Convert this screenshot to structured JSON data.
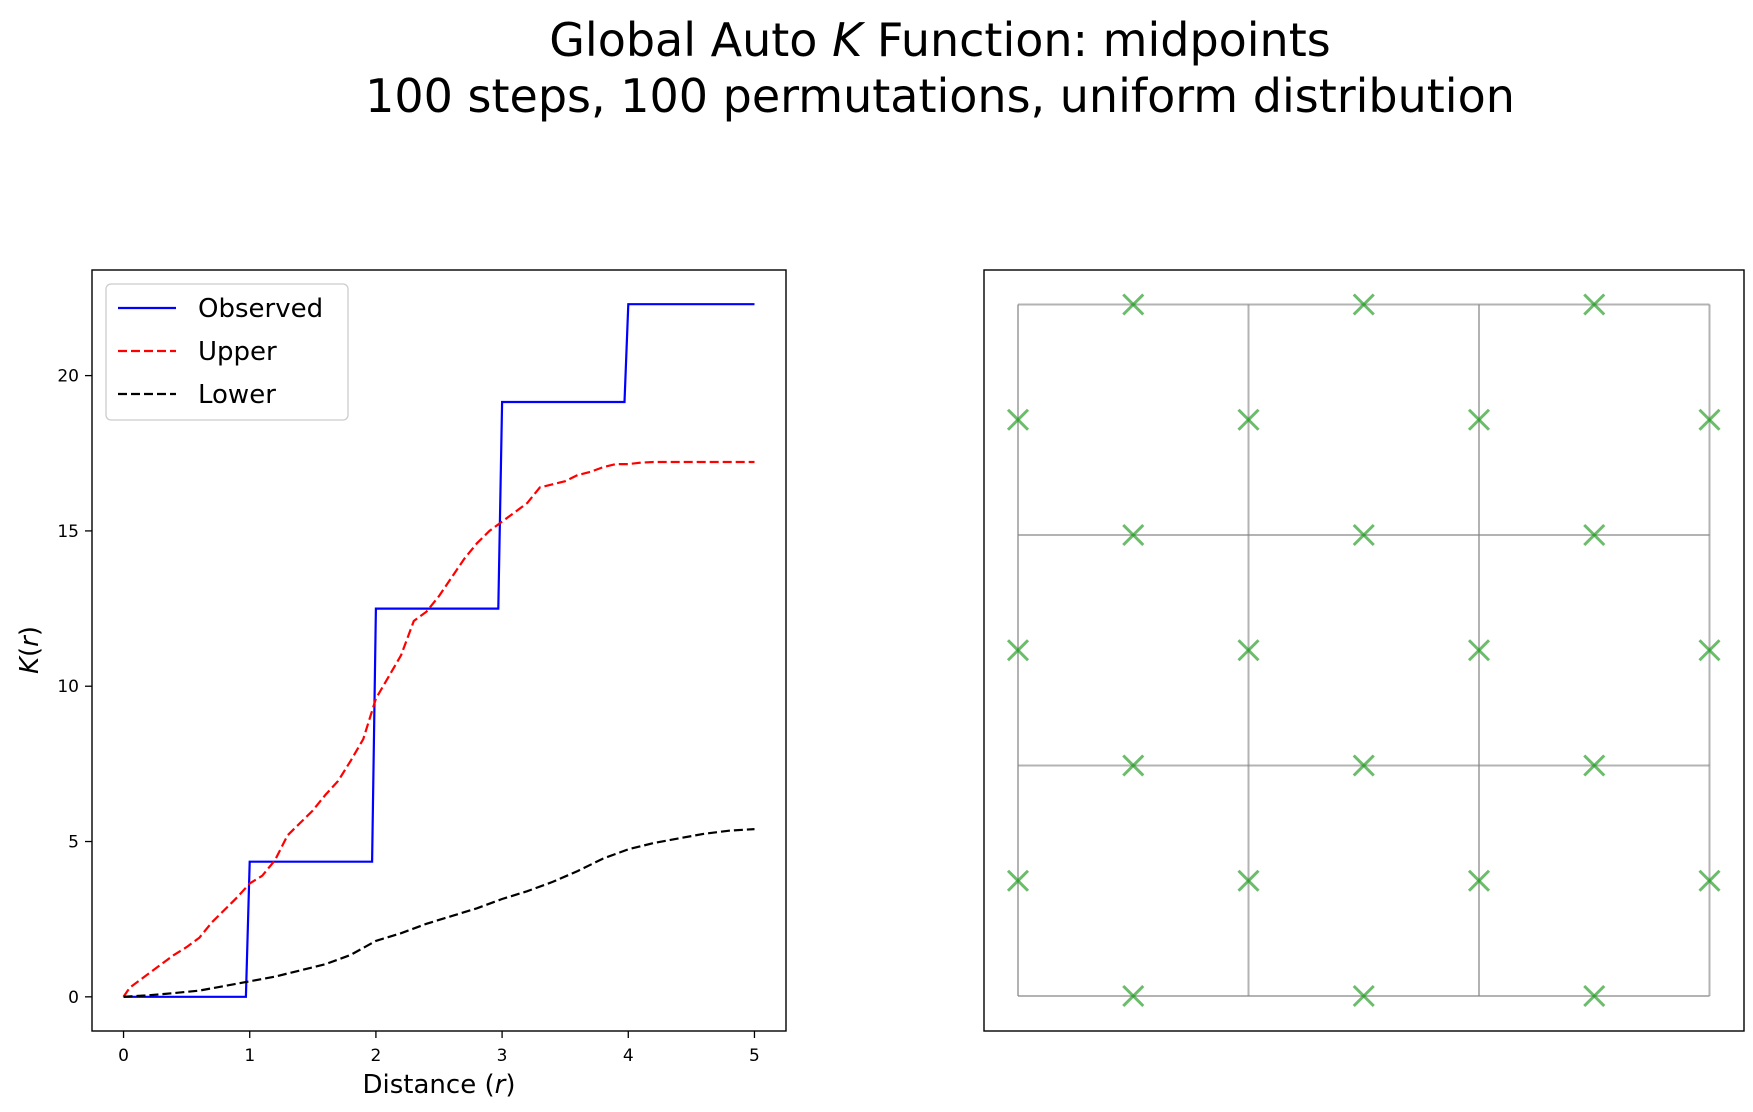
{
  "figure": {
    "title_prefix": "Global Auto ",
    "title_var": "K",
    "title_suffix": " Function: midpoints",
    "subtitle": "100 steps, 100 permutations, uniform distribution"
  },
  "chart_data": [
    {
      "type": "line",
      "xlabel_prefix": "Distance (",
      "xlabel_var": "r",
      "xlabel_suffix": ")",
      "ylabel_var": "K",
      "ylabel_mid": "(",
      "ylabel_var2": "r",
      "ylabel_end": ")",
      "xlim": [
        -0.25,
        5.25
      ],
      "ylim": [
        -1.1,
        23.4
      ],
      "xticks": [
        0,
        1,
        2,
        3,
        4,
        5
      ],
      "yticks": [
        0,
        5,
        10,
        15,
        20
      ],
      "legend_position": "upper-left",
      "series": [
        {
          "name": "Observed",
          "color": "#0000ff",
          "style": "solid",
          "points": [
            [
              0,
              0
            ],
            [
              0.97,
              0
            ],
            [
              1.0,
              4.35
            ],
            [
              1.97,
              4.35
            ],
            [
              2.0,
              12.5
            ],
            [
              2.97,
              12.5
            ],
            [
              3.0,
              19.15
            ],
            [
              3.97,
              19.15
            ],
            [
              4.0,
              22.3
            ],
            [
              5.0,
              22.3
            ]
          ]
        },
        {
          "name": "Upper",
          "color": "#ff0000",
          "style": "dashed",
          "points": [
            [
              0,
              0
            ],
            [
              0.05,
              0.3
            ],
            [
              0.1,
              0.45
            ],
            [
              0.2,
              0.75
            ],
            [
              0.3,
              1.05
            ],
            [
              0.4,
              1.35
            ],
            [
              0.5,
              1.6
            ],
            [
              0.6,
              1.9
            ],
            [
              0.7,
              2.4
            ],
            [
              0.8,
              2.8
            ],
            [
              0.9,
              3.2
            ],
            [
              1.0,
              3.65
            ],
            [
              1.1,
              3.9
            ],
            [
              1.2,
              4.4
            ],
            [
              1.3,
              5.2
            ],
            [
              1.4,
              5.6
            ],
            [
              1.5,
              6.0
            ],
            [
              1.6,
              6.5
            ],
            [
              1.7,
              6.95
            ],
            [
              1.8,
              7.6
            ],
            [
              1.9,
              8.3
            ],
            [
              2.0,
              9.6
            ],
            [
              2.1,
              10.3
            ],
            [
              2.2,
              11.0
            ],
            [
              2.3,
              12.1
            ],
            [
              2.4,
              12.4
            ],
            [
              2.5,
              12.9
            ],
            [
              2.6,
              13.5
            ],
            [
              2.7,
              14.1
            ],
            [
              2.8,
              14.6
            ],
            [
              2.9,
              15.0
            ],
            [
              3.0,
              15.3
            ],
            [
              3.1,
              15.6
            ],
            [
              3.2,
              15.9
            ],
            [
              3.3,
              16.4
            ],
            [
              3.4,
              16.5
            ],
            [
              3.5,
              16.6
            ],
            [
              3.6,
              16.8
            ],
            [
              3.7,
              16.9
            ],
            [
              3.8,
              17.05
            ],
            [
              3.9,
              17.15
            ],
            [
              4.0,
              17.15
            ],
            [
              4.1,
              17.2
            ],
            [
              4.2,
              17.22
            ],
            [
              4.5,
              17.22
            ],
            [
              5.0,
              17.22
            ]
          ]
        },
        {
          "name": "Lower",
          "color": "#000000",
          "style": "dashed",
          "points": [
            [
              0,
              0
            ],
            [
              0.2,
              0.05
            ],
            [
              0.4,
              0.12
            ],
            [
              0.6,
              0.2
            ],
            [
              0.8,
              0.35
            ],
            [
              1.0,
              0.5
            ],
            [
              1.2,
              0.65
            ],
            [
              1.4,
              0.85
            ],
            [
              1.6,
              1.05
            ],
            [
              1.8,
              1.35
            ],
            [
              2.0,
              1.8
            ],
            [
              2.2,
              2.05
            ],
            [
              2.4,
              2.35
            ],
            [
              2.6,
              2.6
            ],
            [
              2.8,
              2.85
            ],
            [
              3.0,
              3.15
            ],
            [
              3.2,
              3.4
            ],
            [
              3.4,
              3.7
            ],
            [
              3.6,
              4.05
            ],
            [
              3.8,
              4.45
            ],
            [
              4.0,
              4.75
            ],
            [
              4.2,
              4.95
            ],
            [
              4.4,
              5.1
            ],
            [
              4.6,
              5.25
            ],
            [
              4.8,
              5.35
            ],
            [
              5.0,
              5.4
            ]
          ]
        }
      ]
    },
    {
      "type": "scatter",
      "xlim": [
        0,
        3.3
      ],
      "ylim": [
        0,
        3.3
      ],
      "show_ticks": false,
      "network_lines": [
        [
          [
            0,
            3
          ],
          [
            3,
            3
          ]
        ],
        [
          [
            0,
            2
          ],
          [
            3,
            2
          ]
        ],
        [
          [
            0,
            1
          ],
          [
            3,
            1
          ]
        ],
        [
          [
            0,
            0
          ],
          [
            3,
            0
          ]
        ],
        [
          [
            0,
            0
          ],
          [
            0,
            3
          ]
        ],
        [
          [
            1,
            0
          ],
          [
            1,
            3
          ]
        ],
        [
          [
            2,
            0
          ],
          [
            2,
            3
          ]
        ],
        [
          [
            3,
            0
          ],
          [
            3,
            3
          ]
        ]
      ],
      "line_color": "#808080",
      "marker": "x",
      "marker_color": "#2ca02c",
      "points": [
        [
          0.5,
          3
        ],
        [
          1.5,
          3
        ],
        [
          2.5,
          3
        ],
        [
          0,
          2.5
        ],
        [
          1,
          2.5
        ],
        [
          2,
          2.5
        ],
        [
          3,
          2.5
        ],
        [
          0.5,
          2
        ],
        [
          1.5,
          2
        ],
        [
          2.5,
          2
        ],
        [
          0,
          1.5
        ],
        [
          1,
          1.5
        ],
        [
          2,
          1.5
        ],
        [
          3,
          1.5
        ],
        [
          0.5,
          1
        ],
        [
          1.5,
          1
        ],
        [
          2.5,
          1
        ],
        [
          0,
          0.5
        ],
        [
          1,
          0.5
        ],
        [
          2,
          0.5
        ],
        [
          3,
          0.5
        ],
        [
          0.5,
          0
        ],
        [
          1.5,
          0
        ],
        [
          2.5,
          0
        ]
      ]
    }
  ]
}
